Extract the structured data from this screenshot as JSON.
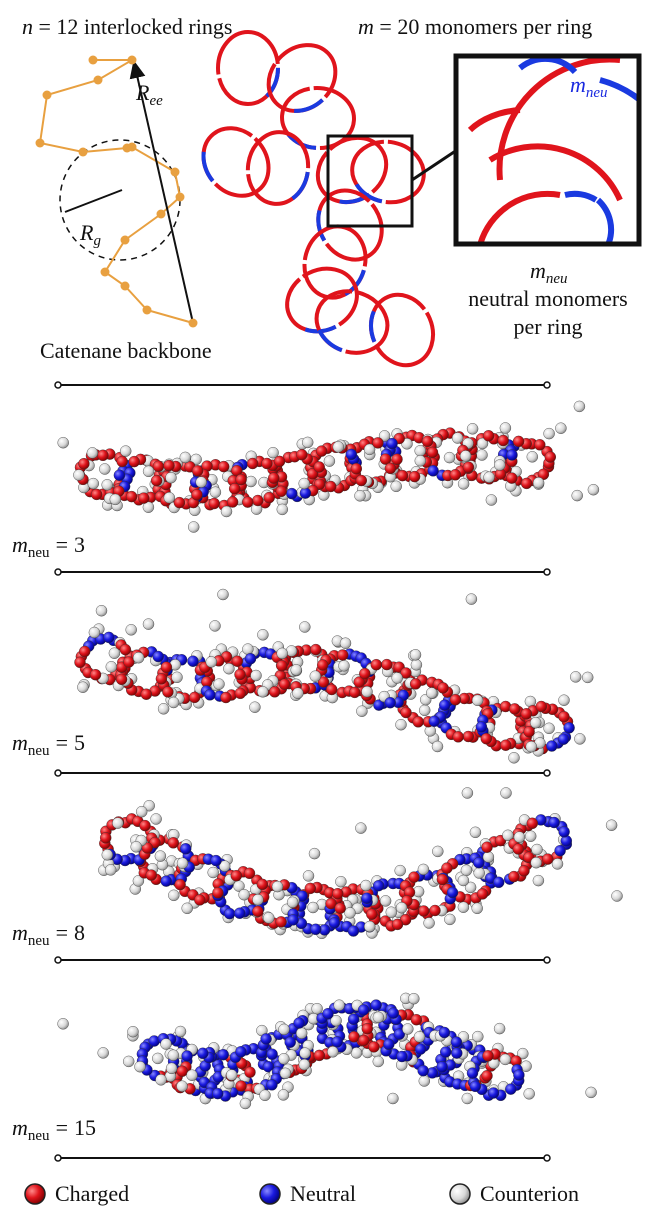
{
  "top": {
    "n_symbol": "n",
    "n_equals": "=",
    "n_value": 12,
    "n_text": "interlocked rings",
    "m_symbol": "m",
    "m_equals": "=",
    "m_value": 20,
    "m_text": "monomers per ring",
    "ree_symbol": "R",
    "ree_subscript": "ee",
    "rg_symbol": "R",
    "rg_subscript": "g",
    "backbone_label": "Catenane backbone",
    "zoom_symbol": "m",
    "zoom_subscript": "neu",
    "neutral_symbol": "m",
    "neutral_subscript": "neu",
    "neutral_line1": "neutral monomers",
    "neutral_line2": "per ring"
  },
  "panels": [
    {
      "symbol": "m",
      "subscript": "neu",
      "equals": "=",
      "value": 3
    },
    {
      "symbol": "m",
      "subscript": "neu",
      "equals": "=",
      "value": 5
    },
    {
      "symbol": "m",
      "subscript": "neu",
      "equals": "=",
      "value": 8
    },
    {
      "symbol": "m",
      "subscript": "neu",
      "equals": "=",
      "value": 15
    }
  ],
  "legend": [
    "Charged",
    "Neutral",
    "Counterion"
  ]
}
